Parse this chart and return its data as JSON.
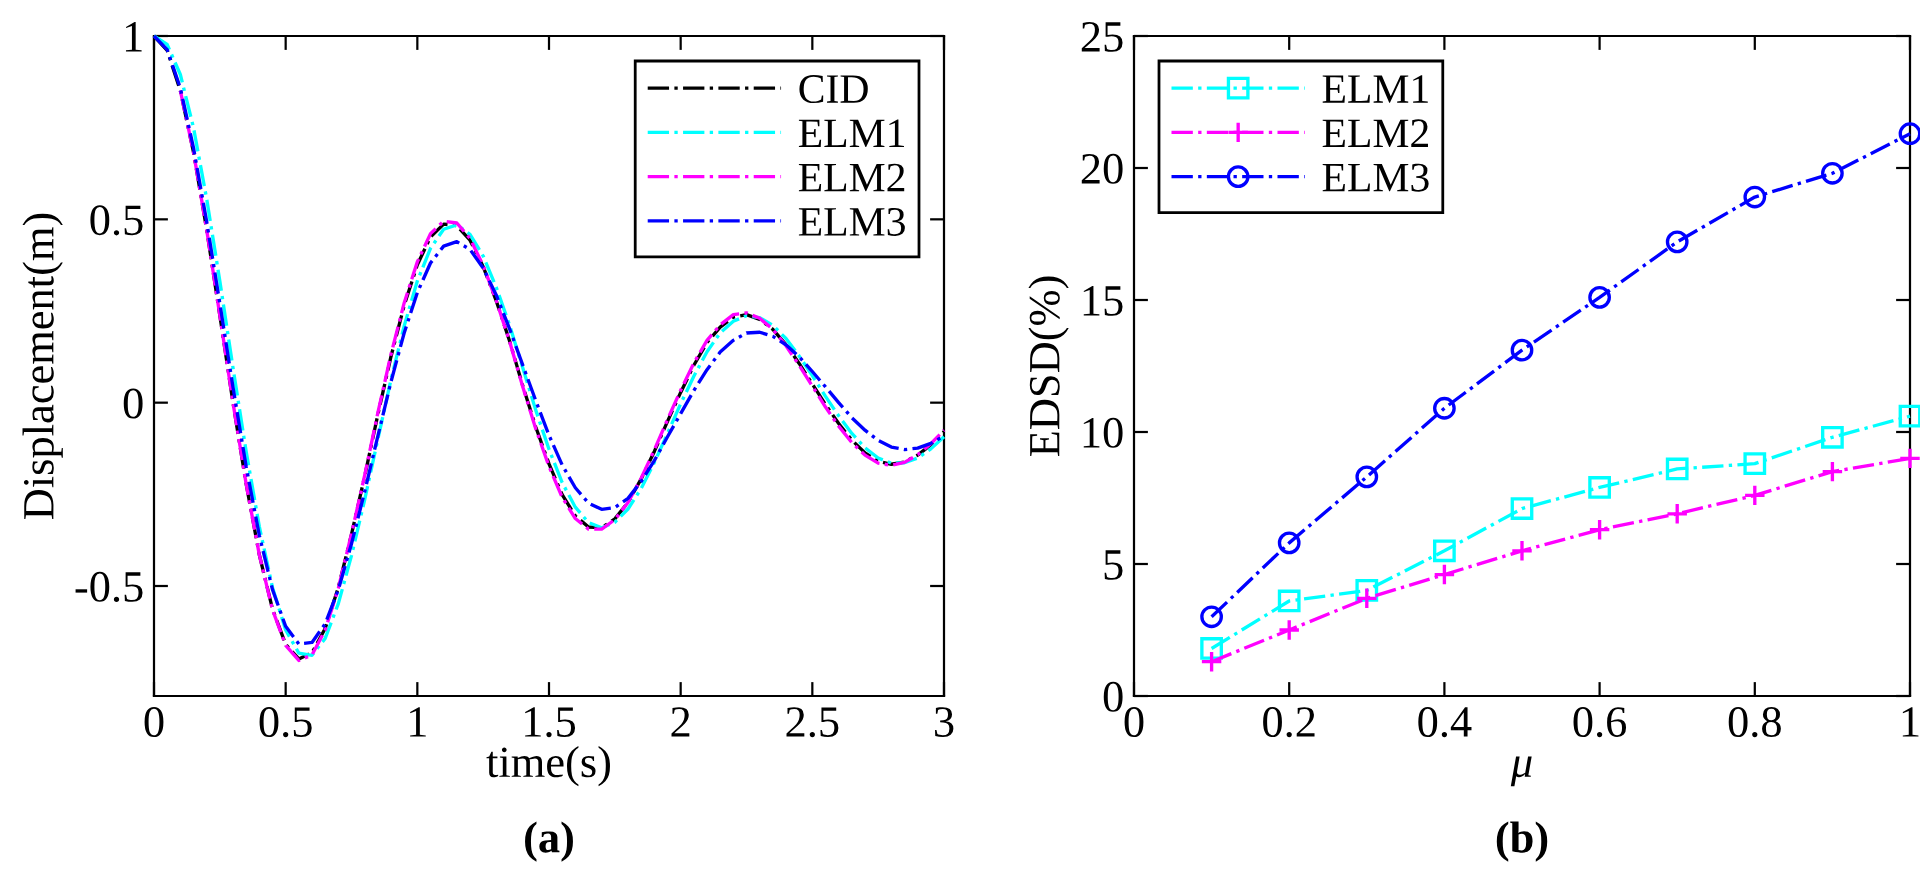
{
  "chart_data": [
    {
      "type": "line",
      "xlabel": "time(s)",
      "ylabel": "Displacement(m)",
      "annotations": [
        "(a)"
      ],
      "xlim": [
        0,
        3
      ],
      "xticks": [
        0,
        0.5,
        1,
        1.5,
        2,
        2.5,
        3
      ],
      "ylim": [
        -0.8,
        1
      ],
      "yticks": [
        -0.5,
        0,
        0.5,
        1
      ],
      "legend": "top right",
      "grid": false,
      "marker": "none",
      "line_style": "dashdot",
      "x": [
        0,
        0.05,
        0.1,
        0.15,
        0.2,
        0.25,
        0.3,
        0.35,
        0.4,
        0.45,
        0.5,
        0.55,
        0.6,
        0.65,
        0.7,
        0.75,
        0.8,
        0.85,
        0.9,
        0.95,
        1.0,
        1.05,
        1.1,
        1.15,
        1.2,
        1.25,
        1.3,
        1.35,
        1.4,
        1.45,
        1.5,
        1.55,
        1.6,
        1.65,
        1.7,
        1.75,
        1.8,
        1.85,
        1.9,
        1.95,
        2.0,
        2.05,
        2.1,
        2.15,
        2.2,
        2.25,
        2.3,
        2.35,
        2.4,
        2.45,
        2.5,
        2.55,
        2.6,
        2.65,
        2.7,
        2.75,
        2.8,
        2.85,
        2.9,
        2.95,
        3.0
      ],
      "series": [
        {
          "name": "CID",
          "color": "#000000",
          "values": [
            1,
            0.961,
            0.851,
            0.683,
            0.472,
            0.238,
            0.0,
            -0.222,
            -0.415,
            -0.563,
            -0.659,
            -0.699,
            -0.682,
            -0.616,
            -0.504,
            -0.359,
            -0.201,
            -0.033,
            0.126,
            0.265,
            0.376,
            0.452,
            0.487,
            0.483,
            0.443,
            0.371,
            0.277,
            0.169,
            0.047,
            -0.067,
            -0.167,
            -0.251,
            -0.309,
            -0.339,
            -0.341,
            -0.317,
            -0.272,
            -0.208,
            -0.133,
            -0.051,
            0.028,
            0.102,
            0.164,
            0.206,
            0.233,
            0.24,
            0.227,
            0.2,
            0.158,
            0.107,
            0.051,
            -0.005,
            -0.057,
            -0.102,
            -0.137,
            -0.16,
            -0.168,
            -0.162,
            -0.143,
            -0.115,
            -0.079
          ]
        },
        {
          "name": "ELM1",
          "color": "#00ffff",
          "values": [
            1,
            0.977,
            0.895,
            0.75,
            0.556,
            0.332,
            0.095,
            -0.133,
            -0.338,
            -0.504,
            -0.62,
            -0.683,
            -0.689,
            -0.643,
            -0.548,
            -0.417,
            -0.265,
            -0.1,
            0.063,
            0.209,
            0.332,
            0.421,
            0.473,
            0.485,
            0.459,
            0.4,
            0.314,
            0.212,
            0.096,
            -0.021,
            -0.127,
            -0.218,
            -0.285,
            -0.327,
            -0.341,
            -0.326,
            -0.29,
            -0.234,
            -0.163,
            -0.084,
            -0.003,
            0.072,
            0.139,
            0.19,
            0.222,
            0.237,
            0.232,
            0.211,
            0.175,
            0.127,
            0.074,
            0.017,
            -0.036,
            -0.084,
            -0.123,
            -0.151,
            -0.165,
            -0.164,
            -0.151,
            -0.126,
            -0.093
          ]
        },
        {
          "name": "ELM2",
          "color": "#ff00ff",
          "values": [
            null,
            null,
            0.851,
            0.683,
            0.472,
            0.238,
            0.0,
            -0.222,
            -0.415,
            -0.565,
            -0.662,
            -0.703,
            -0.688,
            -0.62,
            -0.506,
            -0.358,
            -0.198,
            -0.028,
            0.132,
            0.272,
            0.384,
            0.461,
            0.495,
            0.49,
            0.448,
            0.374,
            0.278,
            0.168,
            0.044,
            -0.072,
            -0.174,
            -0.258,
            -0.316,
            -0.345,
            -0.345,
            -0.319,
            -0.272,
            -0.206,
            -0.129,
            -0.046,
            0.034,
            0.108,
            0.17,
            0.212,
            0.24,
            0.245,
            0.23,
            0.2,
            0.155,
            0.102,
            0.045,
            -0.012,
            -0.064,
            -0.109,
            -0.143,
            -0.165,
            -0.171,
            -0.163,
            -0.142,
            -0.112,
            -0.075
          ]
        },
        {
          "name": "ELM3",
          "color": "#0000ff",
          "values": [
            1,
            0.963,
            0.858,
            0.695,
            0.494,
            0.271,
            0.042,
            -0.174,
            -0.362,
            -0.51,
            -0.61,
            -0.658,
            -0.654,
            -0.603,
            -0.51,
            -0.385,
            -0.243,
            -0.091,
            0.057,
            0.19,
            0.3,
            0.381,
            0.427,
            0.439,
            0.418,
            0.367,
            0.293,
            0.202,
            0.103,
            0.005,
            -0.089,
            -0.17,
            -0.232,
            -0.274,
            -0.291,
            -0.286,
            -0.261,
            -0.215,
            -0.158,
            -0.093,
            -0.03,
            0.033,
            0.09,
            0.138,
            0.17,
            0.19,
            0.192,
            0.181,
            0.158,
            0.125,
            0.085,
            0.043,
            0.0,
            -0.041,
            -0.075,
            -0.103,
            -0.121,
            -0.128,
            -0.124,
            -0.111,
            -0.091
          ]
        }
      ]
    },
    {
      "type": "line",
      "xlabel": "μ",
      "ylabel": "EDSD(%)",
      "annotations": [
        "(b)"
      ],
      "xlim": [
        0,
        1
      ],
      "xticks": [
        0,
        0.2,
        0.4,
        0.6,
        0.8,
        1
      ],
      "ylim": [
        0,
        25
      ],
      "yticks": [
        0,
        5,
        10,
        15,
        20,
        25
      ],
      "legend": "top left",
      "grid": false,
      "line_style": "dashdot",
      "x": [
        0.1,
        0.2,
        0.3,
        0.4,
        0.5,
        0.6,
        0.7,
        0.8,
        0.9,
        1.0
      ],
      "series": [
        {
          "name": "ELM1",
          "color": "#00ffff",
          "marker": "square",
          "values": [
            1.8,
            3.6,
            4.0,
            5.5,
            7.1,
            7.9,
            8.6,
            8.8,
            9.8,
            10.6
          ]
        },
        {
          "name": "ELM2",
          "color": "#ff00ff",
          "marker": "cross",
          "values": [
            1.3,
            2.5,
            3.7,
            4.6,
            5.5,
            6.3,
            6.9,
            7.6,
            8.5,
            9.0
          ]
        },
        {
          "name": "ELM3",
          "color": "#0000ff",
          "marker": "circle",
          "values": [
            3.0,
            5.8,
            8.3,
            10.9,
            13.1,
            15.1,
            17.2,
            18.9,
            19.8,
            21.3
          ]
        }
      ]
    }
  ]
}
